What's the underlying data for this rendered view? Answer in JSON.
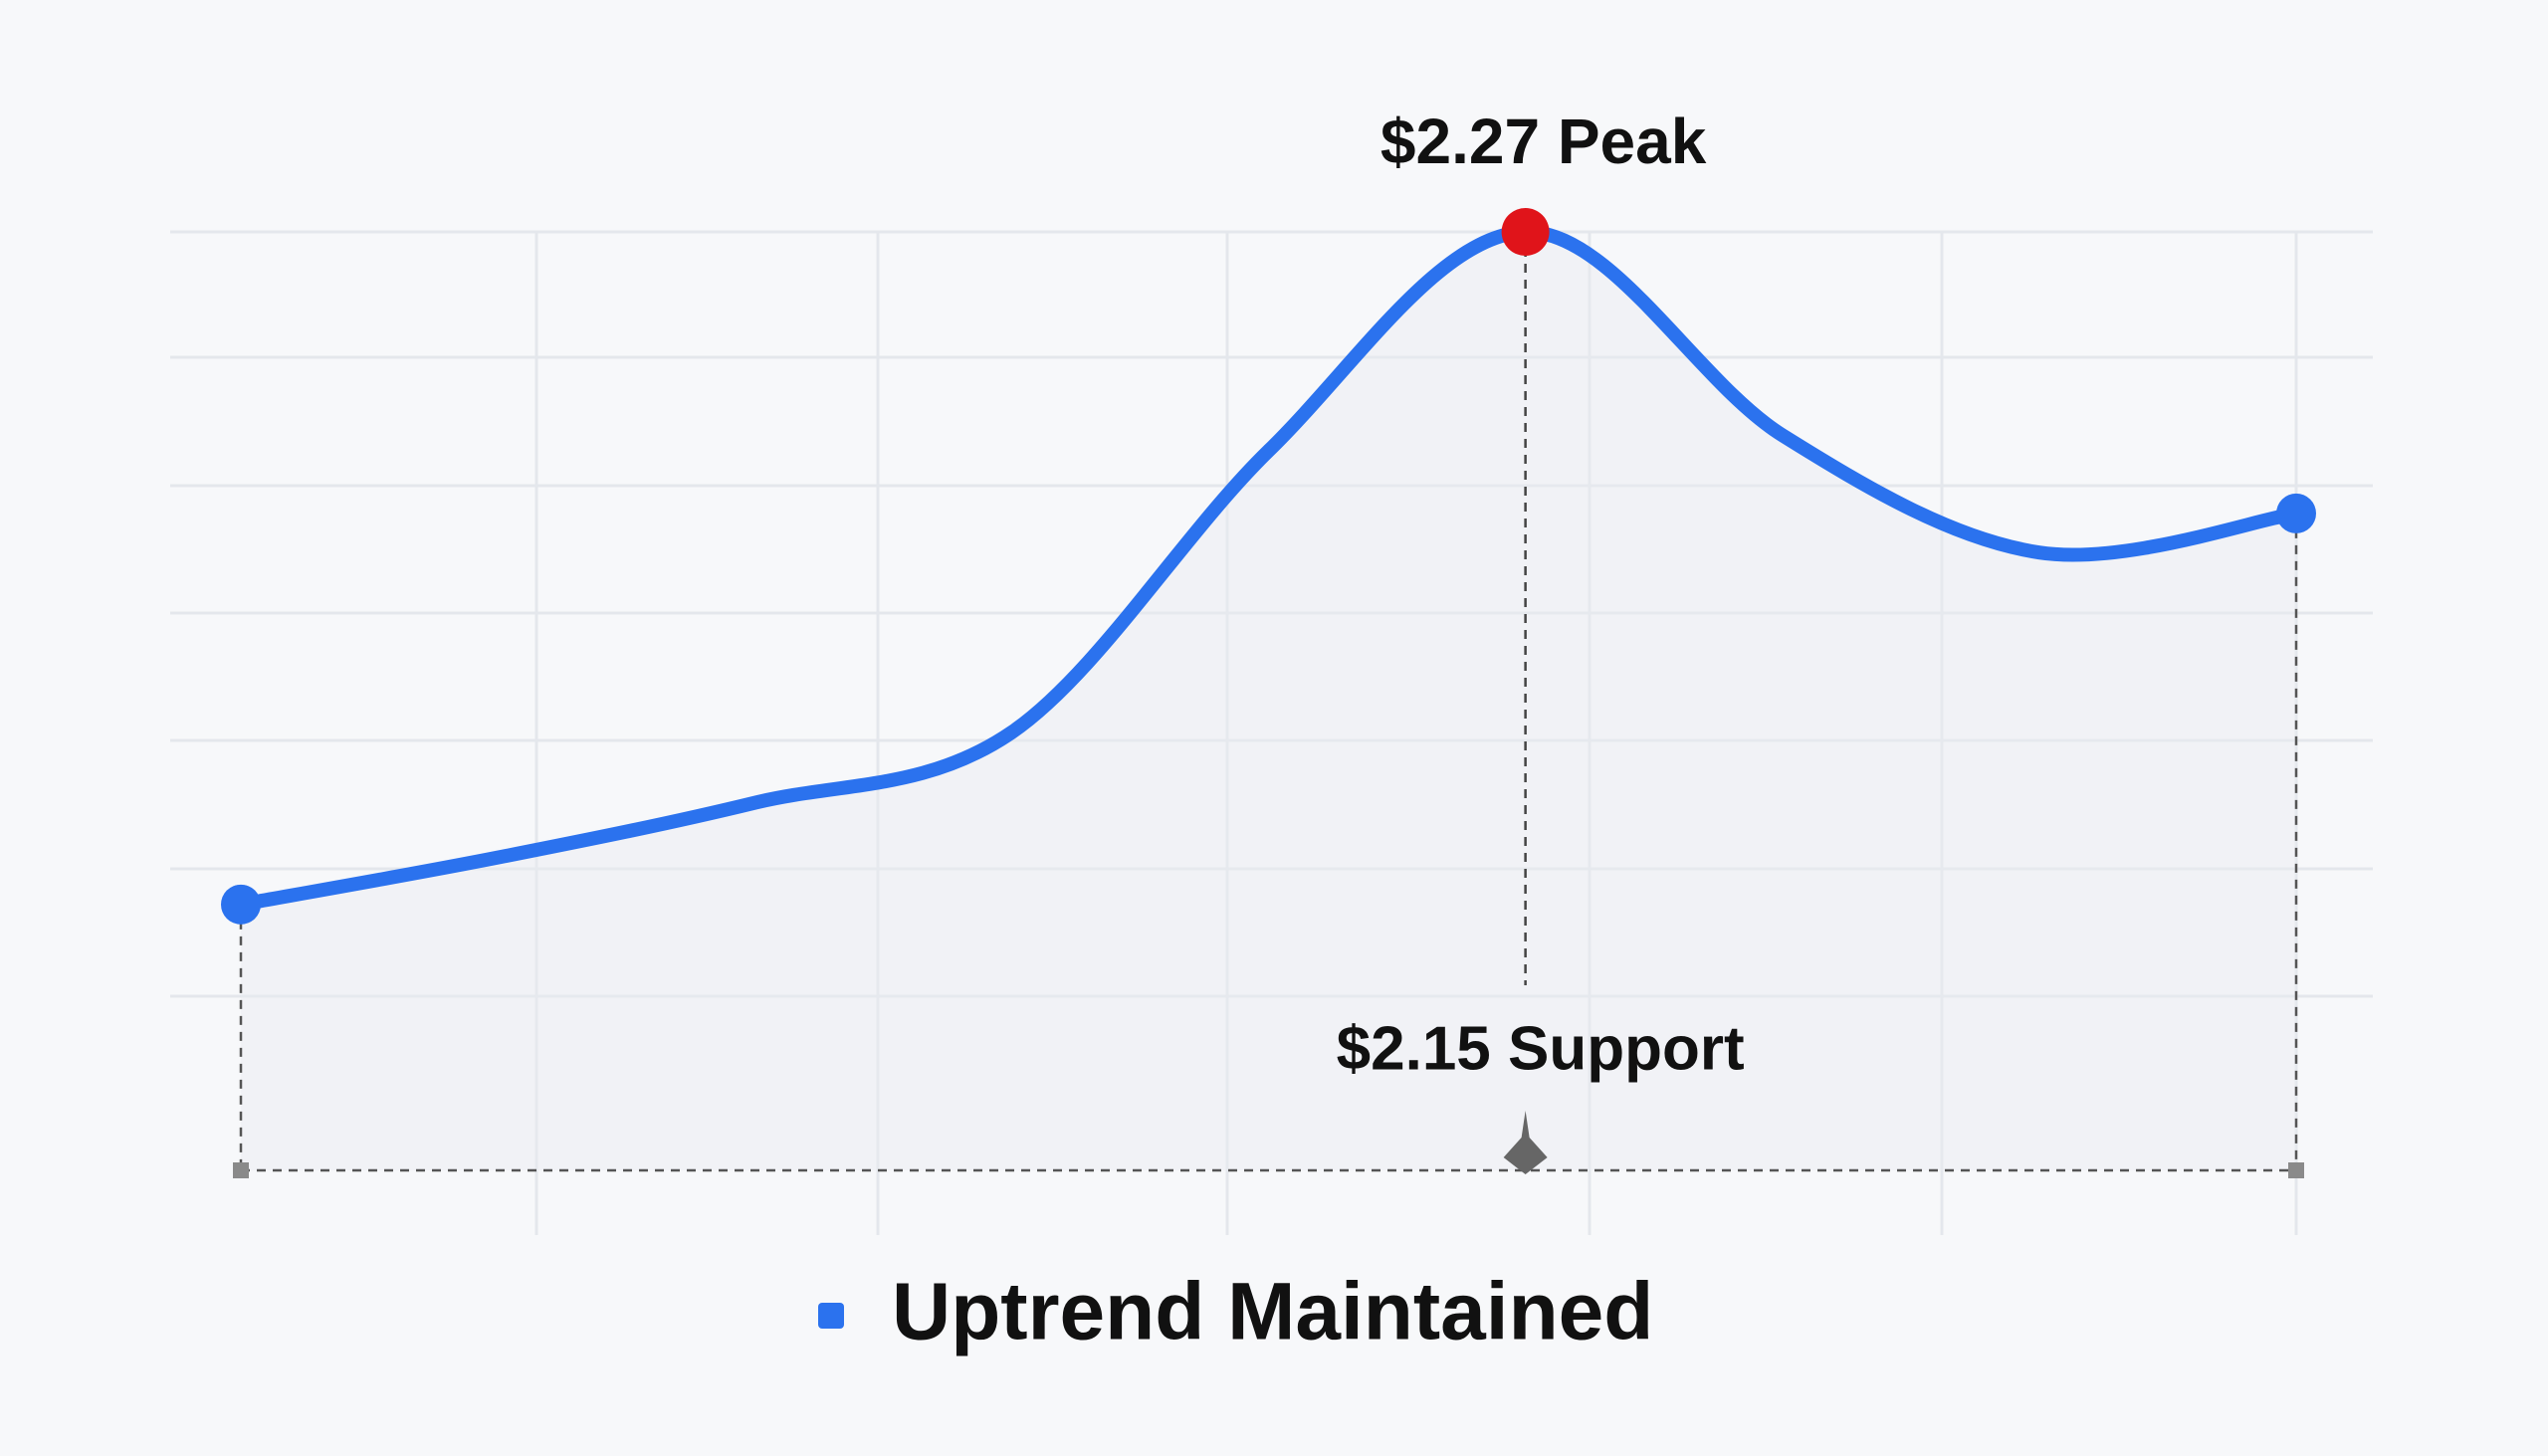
{
  "chart_data": {
    "type": "line",
    "categories": [
      null,
      null,
      null,
      null,
      null,
      null,
      null,
      null,
      null
    ],
    "series": [
      {
        "name": "Uptrend Maintained",
        "color": "#2b72ee",
        "values": [
          2.184,
          2.19,
          2.197,
          2.206,
          2.242,
          2.27,
          2.244,
          2.229,
          2.234
        ]
      }
    ],
    "ylim": [
      2.15,
      2.27
    ],
    "annotations": [
      {
        "text": "$2.27 Peak",
        "value": 2.27,
        "color": "#e0141a"
      },
      {
        "text": "$2.15 Support",
        "value": 2.15
      }
    ],
    "legend": "bottom"
  }
}
